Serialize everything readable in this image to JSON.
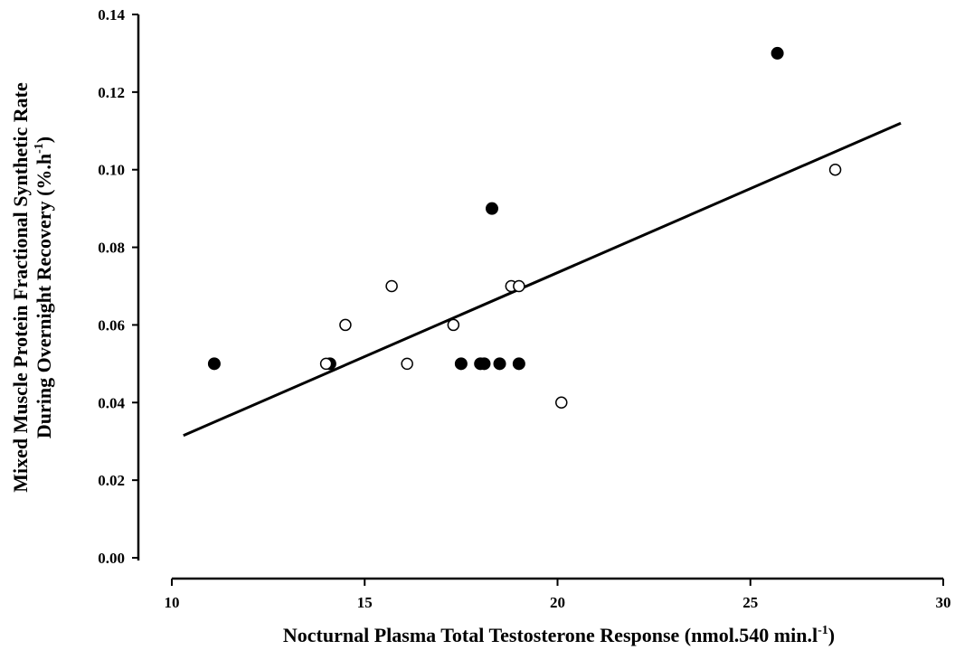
{
  "chart_data": {
    "type": "scatter",
    "xlabel": "Nocturnal Plasma Total Testosterone Response (nmol.540 min.l",
    "xlabel_sup": "-1",
    "xlabel_end": ")",
    "ylabel_line1": "Mixed Muscle Protein Fractional Synthetic Rate",
    "ylabel_line2": "During Overnight Recovery (%.h",
    "ylabel_sup": "-1",
    "ylabel_end": ")",
    "xlim": [
      10,
      30
    ],
    "ylim": [
      0,
      0.14
    ],
    "x_ticks": [
      "10",
      "15",
      "20",
      "25",
      "30"
    ],
    "y_ticks": [
      "0.00",
      "0.02",
      "0.04",
      "0.06",
      "0.08",
      "0.10",
      "0.12",
      "0.14"
    ],
    "grid": false,
    "series": [
      {
        "marker": "filled",
        "color": "#000000",
        "points": [
          [
            11.1,
            0.05
          ],
          [
            14.1,
            0.05
          ],
          [
            17.5,
            0.05
          ],
          [
            18.0,
            0.05
          ],
          [
            18.1,
            0.05
          ],
          [
            18.5,
            0.05
          ],
          [
            19.0,
            0.05
          ],
          [
            18.3,
            0.09
          ],
          [
            25.7,
            0.13
          ]
        ]
      },
      {
        "marker": "open",
        "color": "#000000",
        "points": [
          [
            14.0,
            0.05
          ],
          [
            14.5,
            0.06
          ],
          [
            15.7,
            0.07
          ],
          [
            16.1,
            0.05
          ],
          [
            17.3,
            0.06
          ],
          [
            18.8,
            0.07
          ],
          [
            19.0,
            0.07
          ],
          [
            20.1,
            0.04
          ],
          [
            27.2,
            0.1
          ]
        ]
      }
    ],
    "fit_line": {
      "x": [
        10.3,
        28.9
      ],
      "y": [
        0.0315,
        0.112
      ]
    }
  }
}
